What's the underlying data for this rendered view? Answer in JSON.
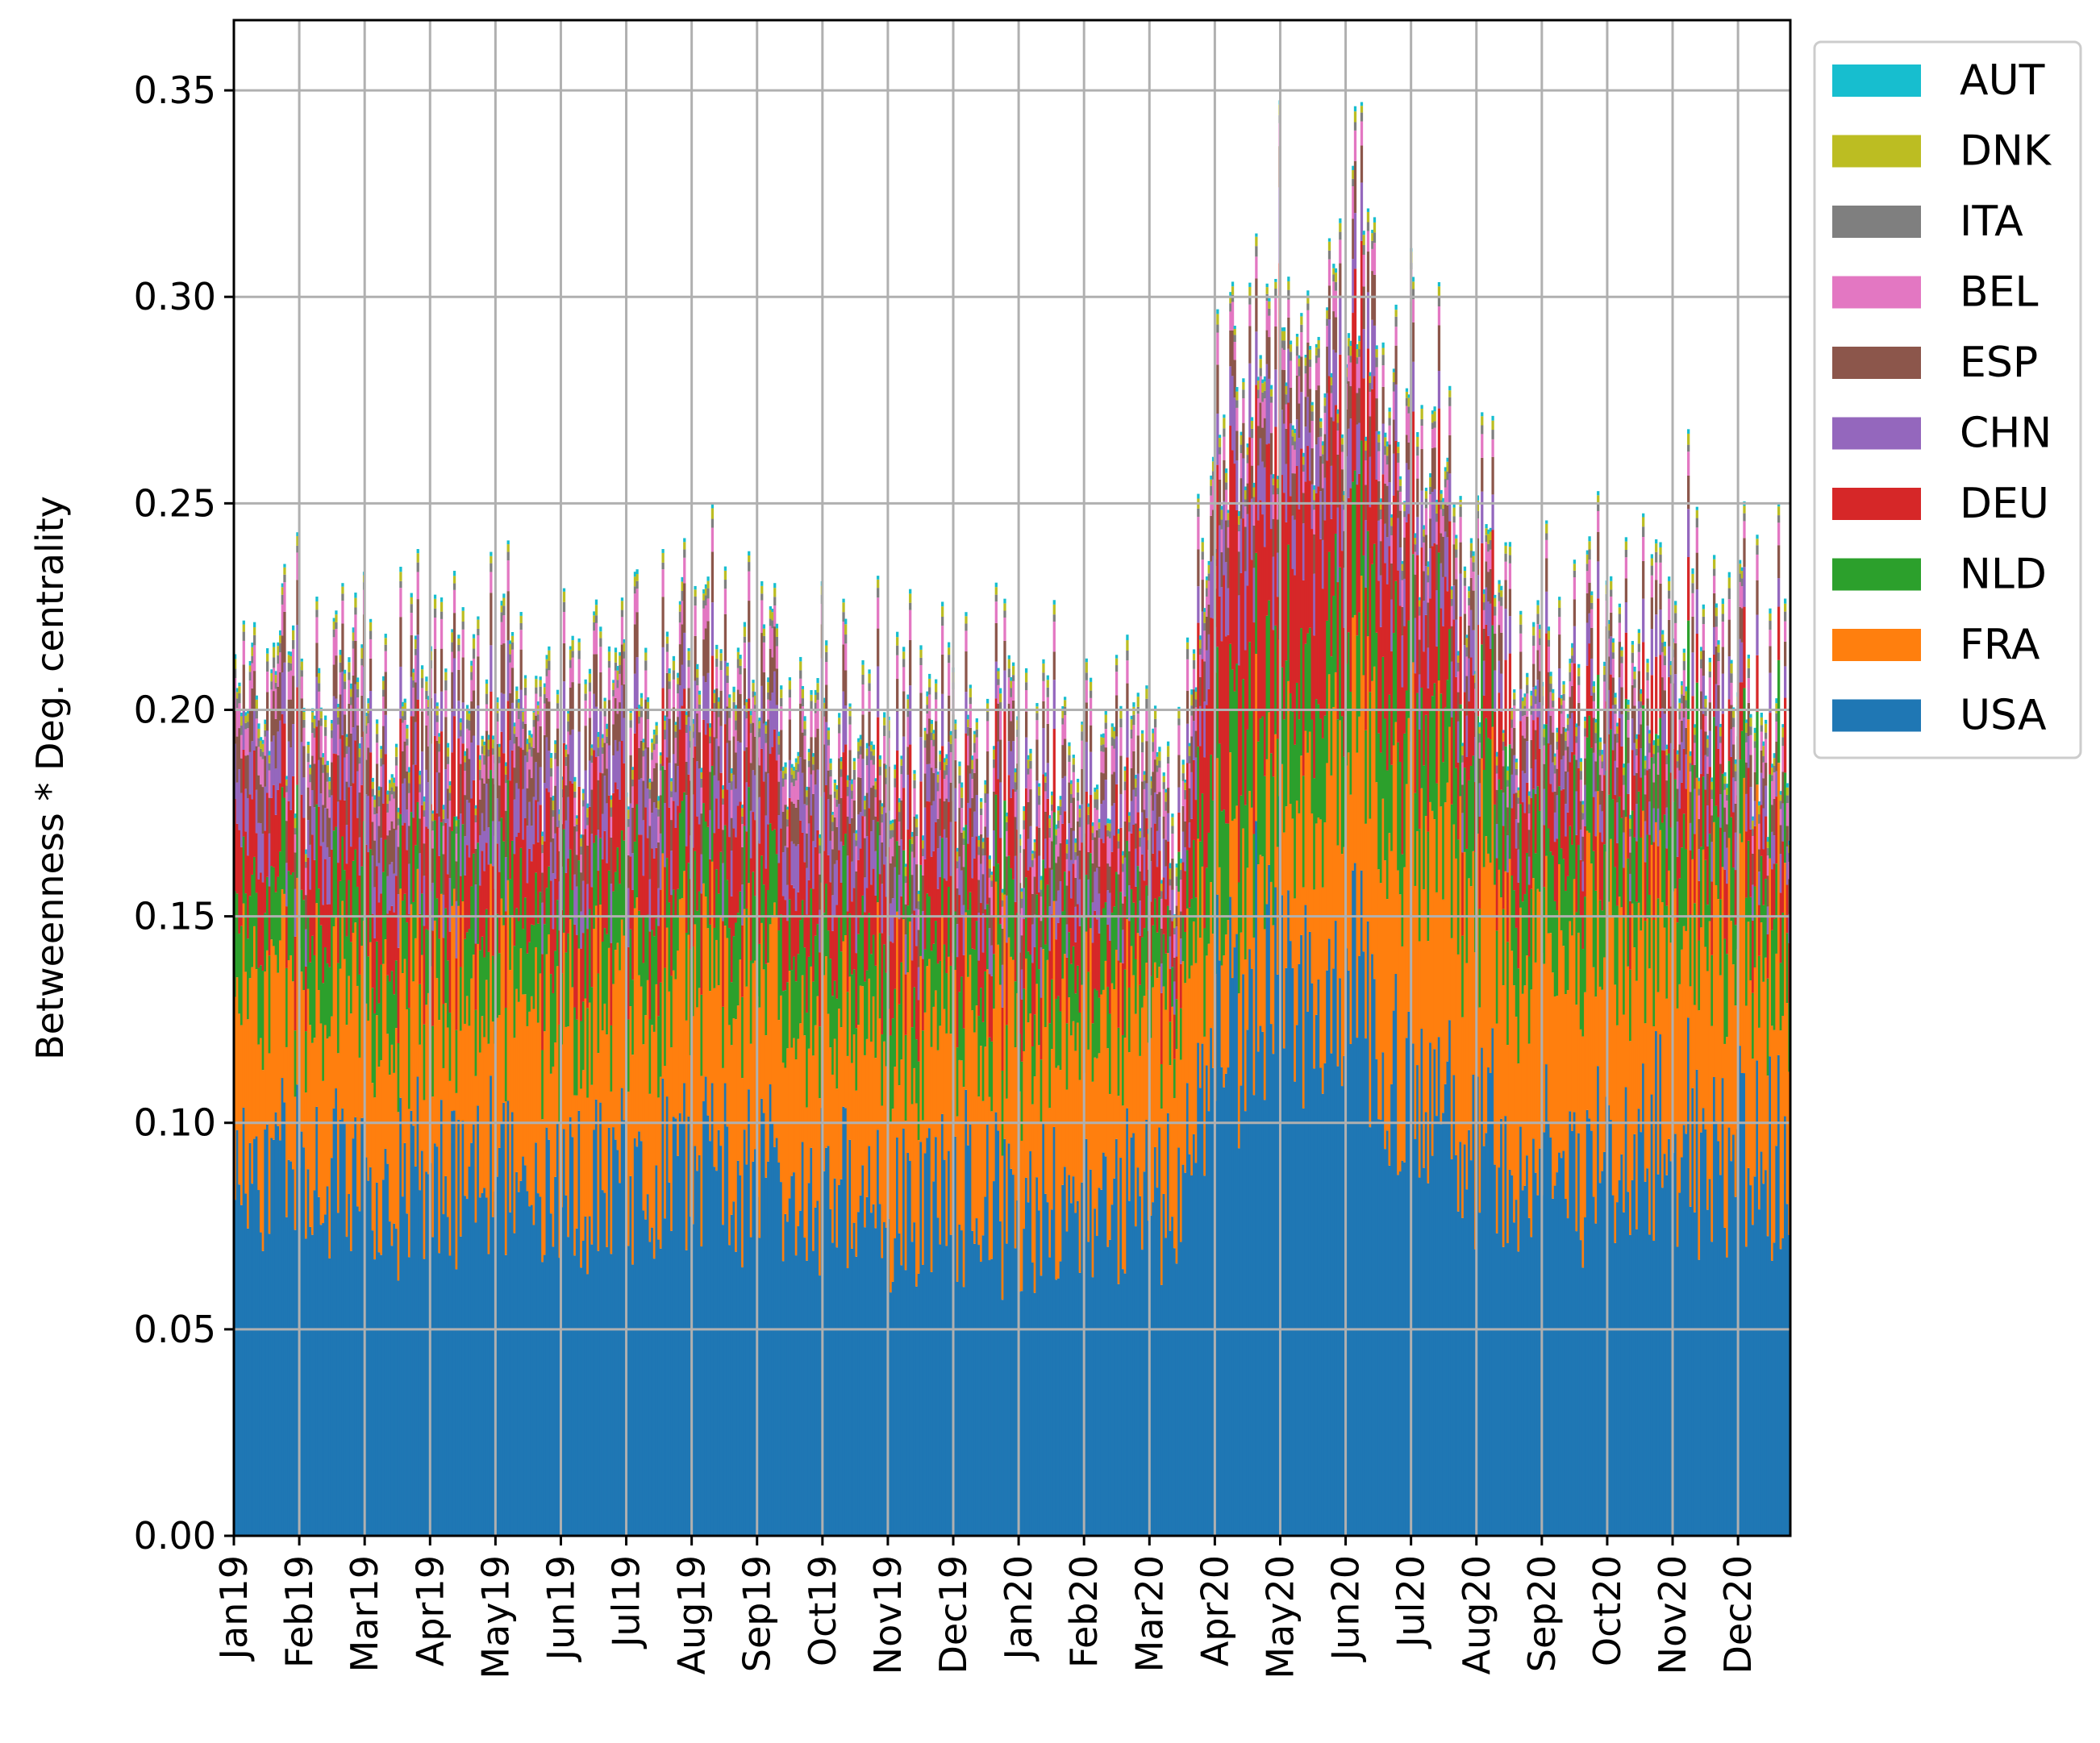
{
  "chart_data": {
    "type": "bar",
    "stacked": true,
    "title": "",
    "xlabel": "",
    "ylabel": "Betweenness * Deg. centrality",
    "ylim": [
      0,
      0.367
    ],
    "yticks": [
      0.0,
      0.05,
      0.1,
      0.15,
      0.2,
      0.25,
      0.3,
      0.35
    ],
    "ytick_labels": [
      "0.00",
      "0.05",
      "0.10",
      "0.15",
      "0.20",
      "0.25",
      "0.30",
      "0.35"
    ],
    "x_range_months": [
      0,
      23.8
    ],
    "month_ticks": [
      "Jan19",
      "Feb19",
      "Mar19",
      "Apr19",
      "May19",
      "Jun19",
      "Jul19",
      "Aug19",
      "Sep19",
      "Oct19",
      "Nov19",
      "Dec19",
      "Jan20",
      "Feb20",
      "Mar20",
      "Apr20",
      "May20",
      "Jun20",
      "Jul20",
      "Aug20",
      "Sep20",
      "Oct20",
      "Nov20",
      "Dec20"
    ],
    "grid": true,
    "legend_position": "right, outside top",
    "legend": [
      "AUT",
      "DNK",
      "ITA",
      "BEL",
      "ESP",
      "CHN",
      "DEU",
      "NLD",
      "FRA",
      "USA"
    ],
    "colors": {
      "USA": "#1f77b4",
      "FRA": "#ff7f0e",
      "NLD": "#2ca02c",
      "DEU": "#d62728",
      "CHN": "#9467bd",
      "ESP": "#8c564b",
      "BEL": "#e377c2",
      "ITA": "#7f7f7f",
      "DNK": "#bcbd22",
      "AUT": "#17becf"
    },
    "stack_order_bottom_to_top": [
      "USA",
      "FRA",
      "NLD",
      "DEU",
      "CHN",
      "ESP",
      "BEL",
      "ITA",
      "DNK",
      "AUT"
    ],
    "month_keypoints": [
      0,
      1,
      2,
      3,
      4,
      5,
      6,
      7,
      8,
      9,
      10,
      11,
      12,
      13,
      14,
      14.5,
      15,
      16,
      17,
      18,
      19,
      20,
      21,
      22,
      23,
      23.8
    ],
    "series": [
      {
        "name": "USA",
        "values": [
          0.088,
          0.087,
          0.085,
          0.084,
          0.087,
          0.086,
          0.087,
          0.088,
          0.085,
          0.083,
          0.08,
          0.083,
          0.08,
          0.08,
          0.078,
          0.08,
          0.12,
          0.14,
          0.13,
          0.11,
          0.095,
          0.09,
          0.092,
          0.094,
          0.092,
          0.09
        ]
      },
      {
        "name": "FRA",
        "values": [
          0.045,
          0.043,
          0.044,
          0.044,
          0.044,
          0.045,
          0.046,
          0.045,
          0.045,
          0.044,
          0.045,
          0.044,
          0.046,
          0.045,
          0.046,
          0.05,
          0.03,
          0.04,
          0.06,
          0.07,
          0.063,
          0.058,
          0.056,
          0.055,
          0.055,
          0.052
        ]
      },
      {
        "name": "NLD",
        "values": [
          0.02,
          0.02,
          0.02,
          0.019,
          0.02,
          0.02,
          0.02,
          0.02,
          0.019,
          0.019,
          0.019,
          0.018,
          0.018,
          0.017,
          0.015,
          0.01,
          0.03,
          0.03,
          0.03,
          0.028,
          0.025,
          0.025,
          0.024,
          0.022,
          0.022,
          0.022
        ]
      },
      {
        "name": "DEU",
        "values": [
          0.02,
          0.02,
          0.02,
          0.02,
          0.02,
          0.02,
          0.02,
          0.02,
          0.02,
          0.02,
          0.02,
          0.019,
          0.018,
          0.017,
          0.016,
          0.01,
          0.05,
          0.045,
          0.04,
          0.035,
          0.02,
          0.018,
          0.016,
          0.015,
          0.015,
          0.015
        ]
      },
      {
        "name": "CHN",
        "values": [
          0.012,
          0.012,
          0.012,
          0.012,
          0.012,
          0.012,
          0.012,
          0.012,
          0.012,
          0.012,
          0.011,
          0.011,
          0.01,
          0.01,
          0.01,
          0.006,
          0.015,
          0.015,
          0.014,
          0.012,
          0.01,
          0.009,
          0.009,
          0.009,
          0.008,
          0.008
        ]
      },
      {
        "name": "ESP",
        "values": [
          0.01,
          0.01,
          0.01,
          0.01,
          0.01,
          0.01,
          0.01,
          0.01,
          0.01,
          0.01,
          0.009,
          0.009,
          0.008,
          0.008,
          0.008,
          0.006,
          0.01,
          0.01,
          0.01,
          0.009,
          0.008,
          0.007,
          0.007,
          0.007,
          0.007,
          0.007
        ]
      },
      {
        "name": "BEL",
        "values": [
          0.006,
          0.006,
          0.006,
          0.006,
          0.006,
          0.006,
          0.006,
          0.006,
          0.006,
          0.006,
          0.006,
          0.006,
          0.006,
          0.006,
          0.006,
          0.006,
          0.006,
          0.006,
          0.006,
          0.006,
          0.005,
          0.005,
          0.005,
          0.005,
          0.005,
          0.005
        ]
      },
      {
        "name": "ITA",
        "values": [
          0.002,
          0.002,
          0.002,
          0.002,
          0.002,
          0.002,
          0.002,
          0.002,
          0.002,
          0.002,
          0.002,
          0.002,
          0.002,
          0.002,
          0.002,
          0.002,
          0.002,
          0.002,
          0.002,
          0.002,
          0.002,
          0.002,
          0.002,
          0.002,
          0.002,
          0.002
        ]
      },
      {
        "name": "DNK",
        "values": [
          0.002,
          0.002,
          0.002,
          0.002,
          0.002,
          0.002,
          0.002,
          0.002,
          0.002,
          0.002,
          0.002,
          0.002,
          0.002,
          0.002,
          0.002,
          0.002,
          0.002,
          0.002,
          0.002,
          0.002,
          0.002,
          0.002,
          0.002,
          0.002,
          0.002,
          0.002
        ]
      },
      {
        "name": "AUT",
        "values": [
          0.001,
          0.001,
          0.001,
          0.001,
          0.001,
          0.001,
          0.001,
          0.001,
          0.001,
          0.001,
          0.001,
          0.001,
          0.001,
          0.001,
          0.001,
          0.001,
          0.001,
          0.001,
          0.001,
          0.001,
          0.001,
          0.001,
          0.001,
          0.001,
          0.001,
          0.001
        ]
      }
    ]
  }
}
